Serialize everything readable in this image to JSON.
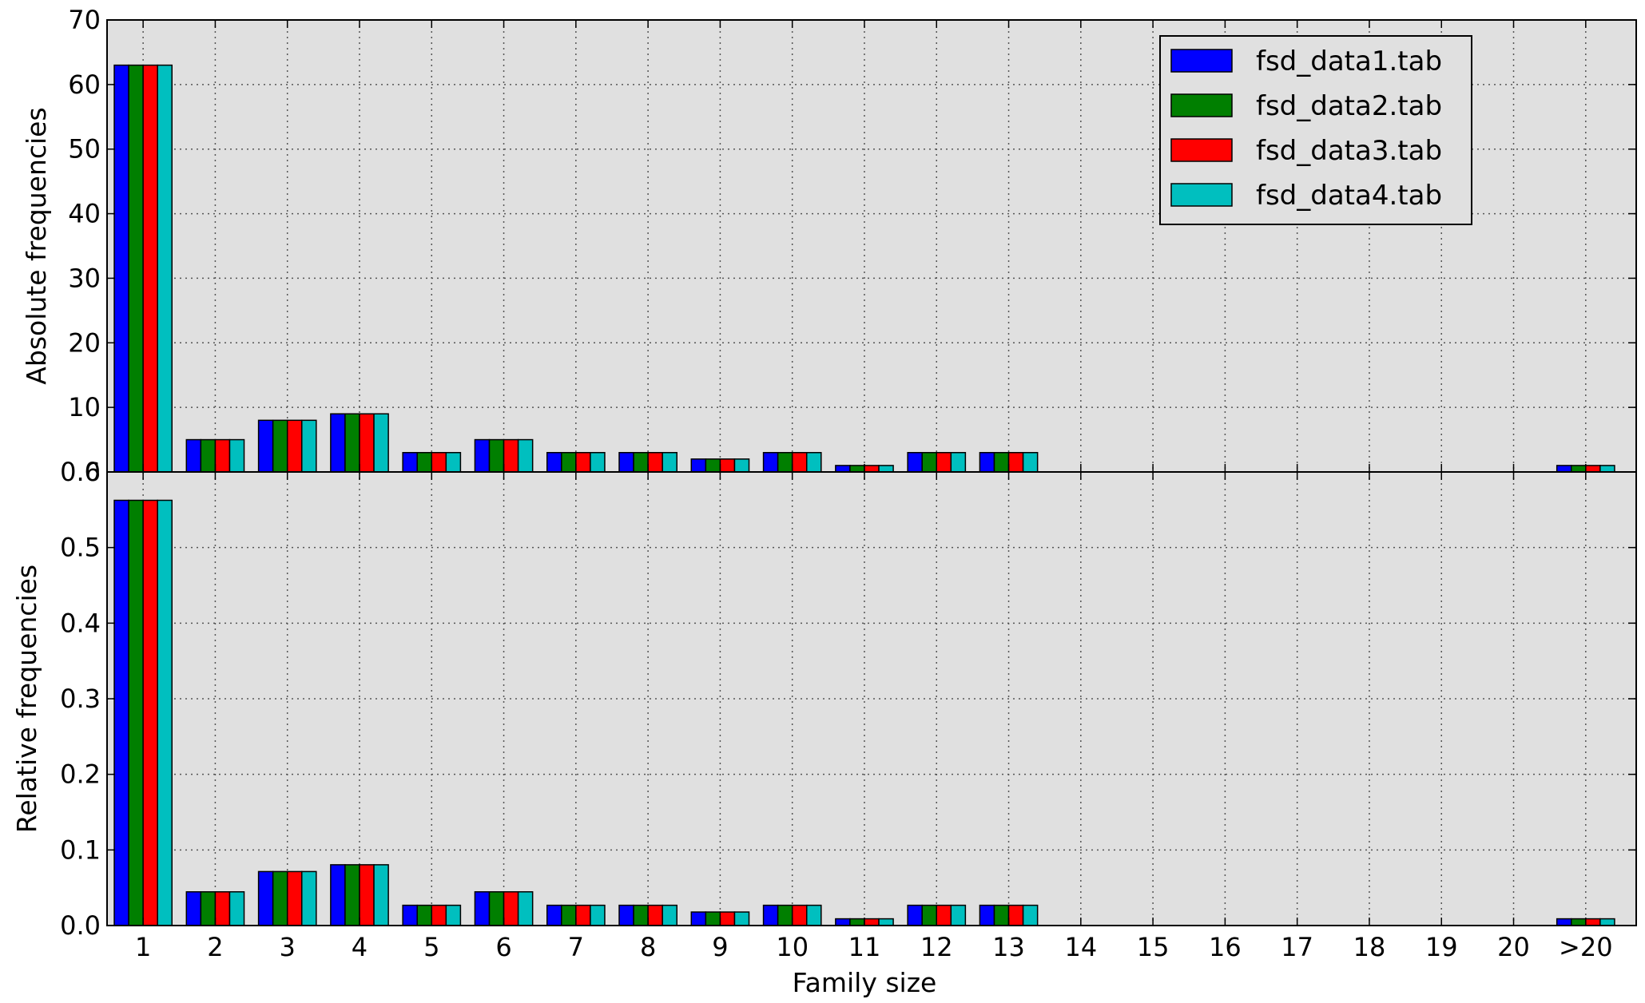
{
  "chart_data": [
    {
      "type": "bar",
      "ylabel": "Absolute frequencies",
      "xlabel": "",
      "ylim": [
        0,
        70
      ],
      "yticks": [
        "0",
        "10",
        "20",
        "30",
        "40",
        "50",
        "60",
        "70"
      ],
      "grid": true,
      "legend": "top-right",
      "categories": [
        "1",
        "2",
        "3",
        "4",
        "5",
        "6",
        "7",
        "8",
        "9",
        "10",
        "11",
        "12",
        "13",
        "14",
        "15",
        "16",
        "17",
        "18",
        "19",
        "20",
        ">20"
      ],
      "series": [
        {
          "name": "fsd_data1.tab",
          "color": "#0000ff",
          "values": [
            63,
            5,
            8,
            9,
            3,
            5,
            3,
            3,
            2,
            3,
            1,
            3,
            3,
            0,
            0,
            0,
            0,
            0,
            0,
            0,
            1
          ]
        },
        {
          "name": "fsd_data2.tab",
          "color": "#007f00",
          "values": [
            63,
            5,
            8,
            9,
            3,
            5,
            3,
            3,
            2,
            3,
            1,
            3,
            3,
            0,
            0,
            0,
            0,
            0,
            0,
            0,
            1
          ]
        },
        {
          "name": "fsd_data3.tab",
          "color": "#ff0000",
          "values": [
            63,
            5,
            8,
            9,
            3,
            5,
            3,
            3,
            2,
            3,
            1,
            3,
            3,
            0,
            0,
            0,
            0,
            0,
            0,
            0,
            1
          ]
        },
        {
          "name": "fsd_data4.tab",
          "color": "#00bfbf",
          "values": [
            63,
            5,
            8,
            9,
            3,
            5,
            3,
            3,
            2,
            3,
            1,
            3,
            3,
            0,
            0,
            0,
            0,
            0,
            0,
            0,
            1
          ]
        }
      ]
    },
    {
      "type": "bar",
      "ylabel": "Relative frequencies",
      "xlabel": "Family size",
      "ylim": [
        0,
        0.6
      ],
      "yticks": [
        "0.0",
        "0.1",
        "0.2",
        "0.3",
        "0.4",
        "0.5",
        "0.6"
      ],
      "grid": true,
      "categories": [
        "1",
        "2",
        "3",
        "4",
        "5",
        "6",
        "7",
        "8",
        "9",
        "10",
        "11",
        "12",
        "13",
        "14",
        "15",
        "16",
        "17",
        "18",
        "19",
        "20",
        ">20"
      ],
      "series": [
        {
          "color": "#0000ff",
          "values": [
            0.5625,
            0.0446,
            0.0714,
            0.0804,
            0.0268,
            0.0446,
            0.0268,
            0.0268,
            0.0179,
            0.0268,
            0.0089,
            0.0268,
            0.0268,
            0,
            0,
            0,
            0,
            0,
            0,
            0,
            0.0089
          ]
        },
        {
          "color": "#007f00",
          "values": [
            0.5625,
            0.0446,
            0.0714,
            0.0804,
            0.0268,
            0.0446,
            0.0268,
            0.0268,
            0.0179,
            0.0268,
            0.0089,
            0.0268,
            0.0268,
            0,
            0,
            0,
            0,
            0,
            0,
            0,
            0.0089
          ]
        },
        {
          "color": "#ff0000",
          "values": [
            0.5625,
            0.0446,
            0.0714,
            0.0804,
            0.0268,
            0.0446,
            0.0268,
            0.0268,
            0.0179,
            0.0268,
            0.0089,
            0.0268,
            0.0268,
            0,
            0,
            0,
            0,
            0,
            0,
            0,
            0.0089
          ]
        },
        {
          "color": "#00bfbf",
          "values": [
            0.5625,
            0.0446,
            0.0714,
            0.0804,
            0.0268,
            0.0446,
            0.0268,
            0.0268,
            0.0179,
            0.0268,
            0.0089,
            0.0268,
            0.0268,
            0,
            0,
            0,
            0,
            0,
            0,
            0,
            0.0089
          ]
        }
      ]
    }
  ],
  "colors": {
    "plot_background": "#e0e0e0",
    "grid": "#555555"
  }
}
